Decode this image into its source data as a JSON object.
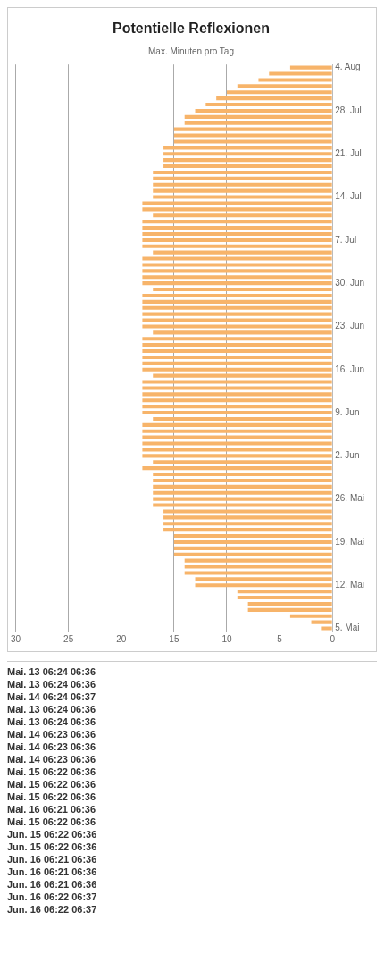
{
  "chart_data": {
    "type": "bar",
    "title": "Potentielle Reflexionen",
    "subtitle": "Max. Minuten pro Tag",
    "orientation": "horizontal",
    "color": "#f7b46a",
    "categories": [
      "4. Aug",
      null,
      null,
      null,
      null,
      null,
      null,
      "28. Jul",
      null,
      null,
      null,
      null,
      null,
      null,
      "21. Jul",
      null,
      null,
      null,
      null,
      null,
      null,
      "14. Jul",
      null,
      null,
      null,
      null,
      null,
      null,
      "7. Jul",
      null,
      null,
      null,
      null,
      null,
      null,
      "30. Jun",
      null,
      null,
      null,
      null,
      null,
      null,
      "23. Jun",
      null,
      null,
      null,
      null,
      null,
      null,
      "16. Jun",
      null,
      null,
      null,
      null,
      null,
      null,
      "9. Jun",
      null,
      null,
      null,
      null,
      null,
      null,
      "2. Jun",
      null,
      null,
      null,
      null,
      null,
      null,
      "26. Mai",
      null,
      null,
      null,
      null,
      null,
      null,
      "19. Mai",
      null,
      null,
      null,
      null,
      null,
      null,
      "12. Mai",
      null,
      null,
      null,
      null,
      null,
      null,
      "5. Mai"
    ],
    "values": [
      4,
      6,
      7,
      9,
      10,
      11,
      12,
      13,
      14,
      14,
      15,
      15,
      15,
      16,
      16,
      16,
      16,
      17,
      17,
      17,
      17,
      17,
      18,
      18,
      17,
      18,
      18,
      18,
      18,
      18,
      17,
      18,
      18,
      18,
      18,
      18,
      17,
      18,
      18,
      18,
      18,
      18,
      18,
      17,
      18,
      18,
      18,
      18,
      18,
      18,
      17,
      18,
      18,
      18,
      18,
      18,
      18,
      17,
      18,
      18,
      18,
      18,
      18,
      18,
      17,
      18,
      17,
      17,
      17,
      17,
      17,
      17,
      16,
      16,
      16,
      16,
      15,
      15,
      15,
      15,
      14,
      14,
      14,
      13,
      13,
      9,
      9,
      8,
      8,
      4,
      2,
      1
    ],
    "xlim": [
      30,
      0
    ],
    "xticks": [
      30,
      25,
      20,
      15,
      10,
      5,
      0
    ],
    "grid": "x",
    "annotations": [
      "Mai. 13 06:24 06:36",
      "Mai. 13 06:24 06:36",
      "Mai. 14 06:24 06:37",
      "Mai. 13 06:24 06:36",
      "Mai. 13 06:24 06:36",
      "Mai. 14 06:23 06:36",
      "Mai. 14 06:23 06:36",
      "Mai. 14 06:23 06:36",
      "Mai. 15 06:22 06:36",
      "Mai. 15 06:22 06:36",
      "Mai. 15 06:22 06:36",
      "Mai. 16 06:21 06:36",
      "Mai. 15 06:22 06:36",
      "Jun. 15 06:22 06:36",
      "Jun. 15 06:22 06:36",
      "Jun. 16 06:21 06:36",
      "Jun. 16 06:21 06:36",
      "Jun. 16 06:21 06:36",
      "Jun. 16 06:22 06:37",
      "Jun. 16 06:22 06:37"
    ]
  }
}
